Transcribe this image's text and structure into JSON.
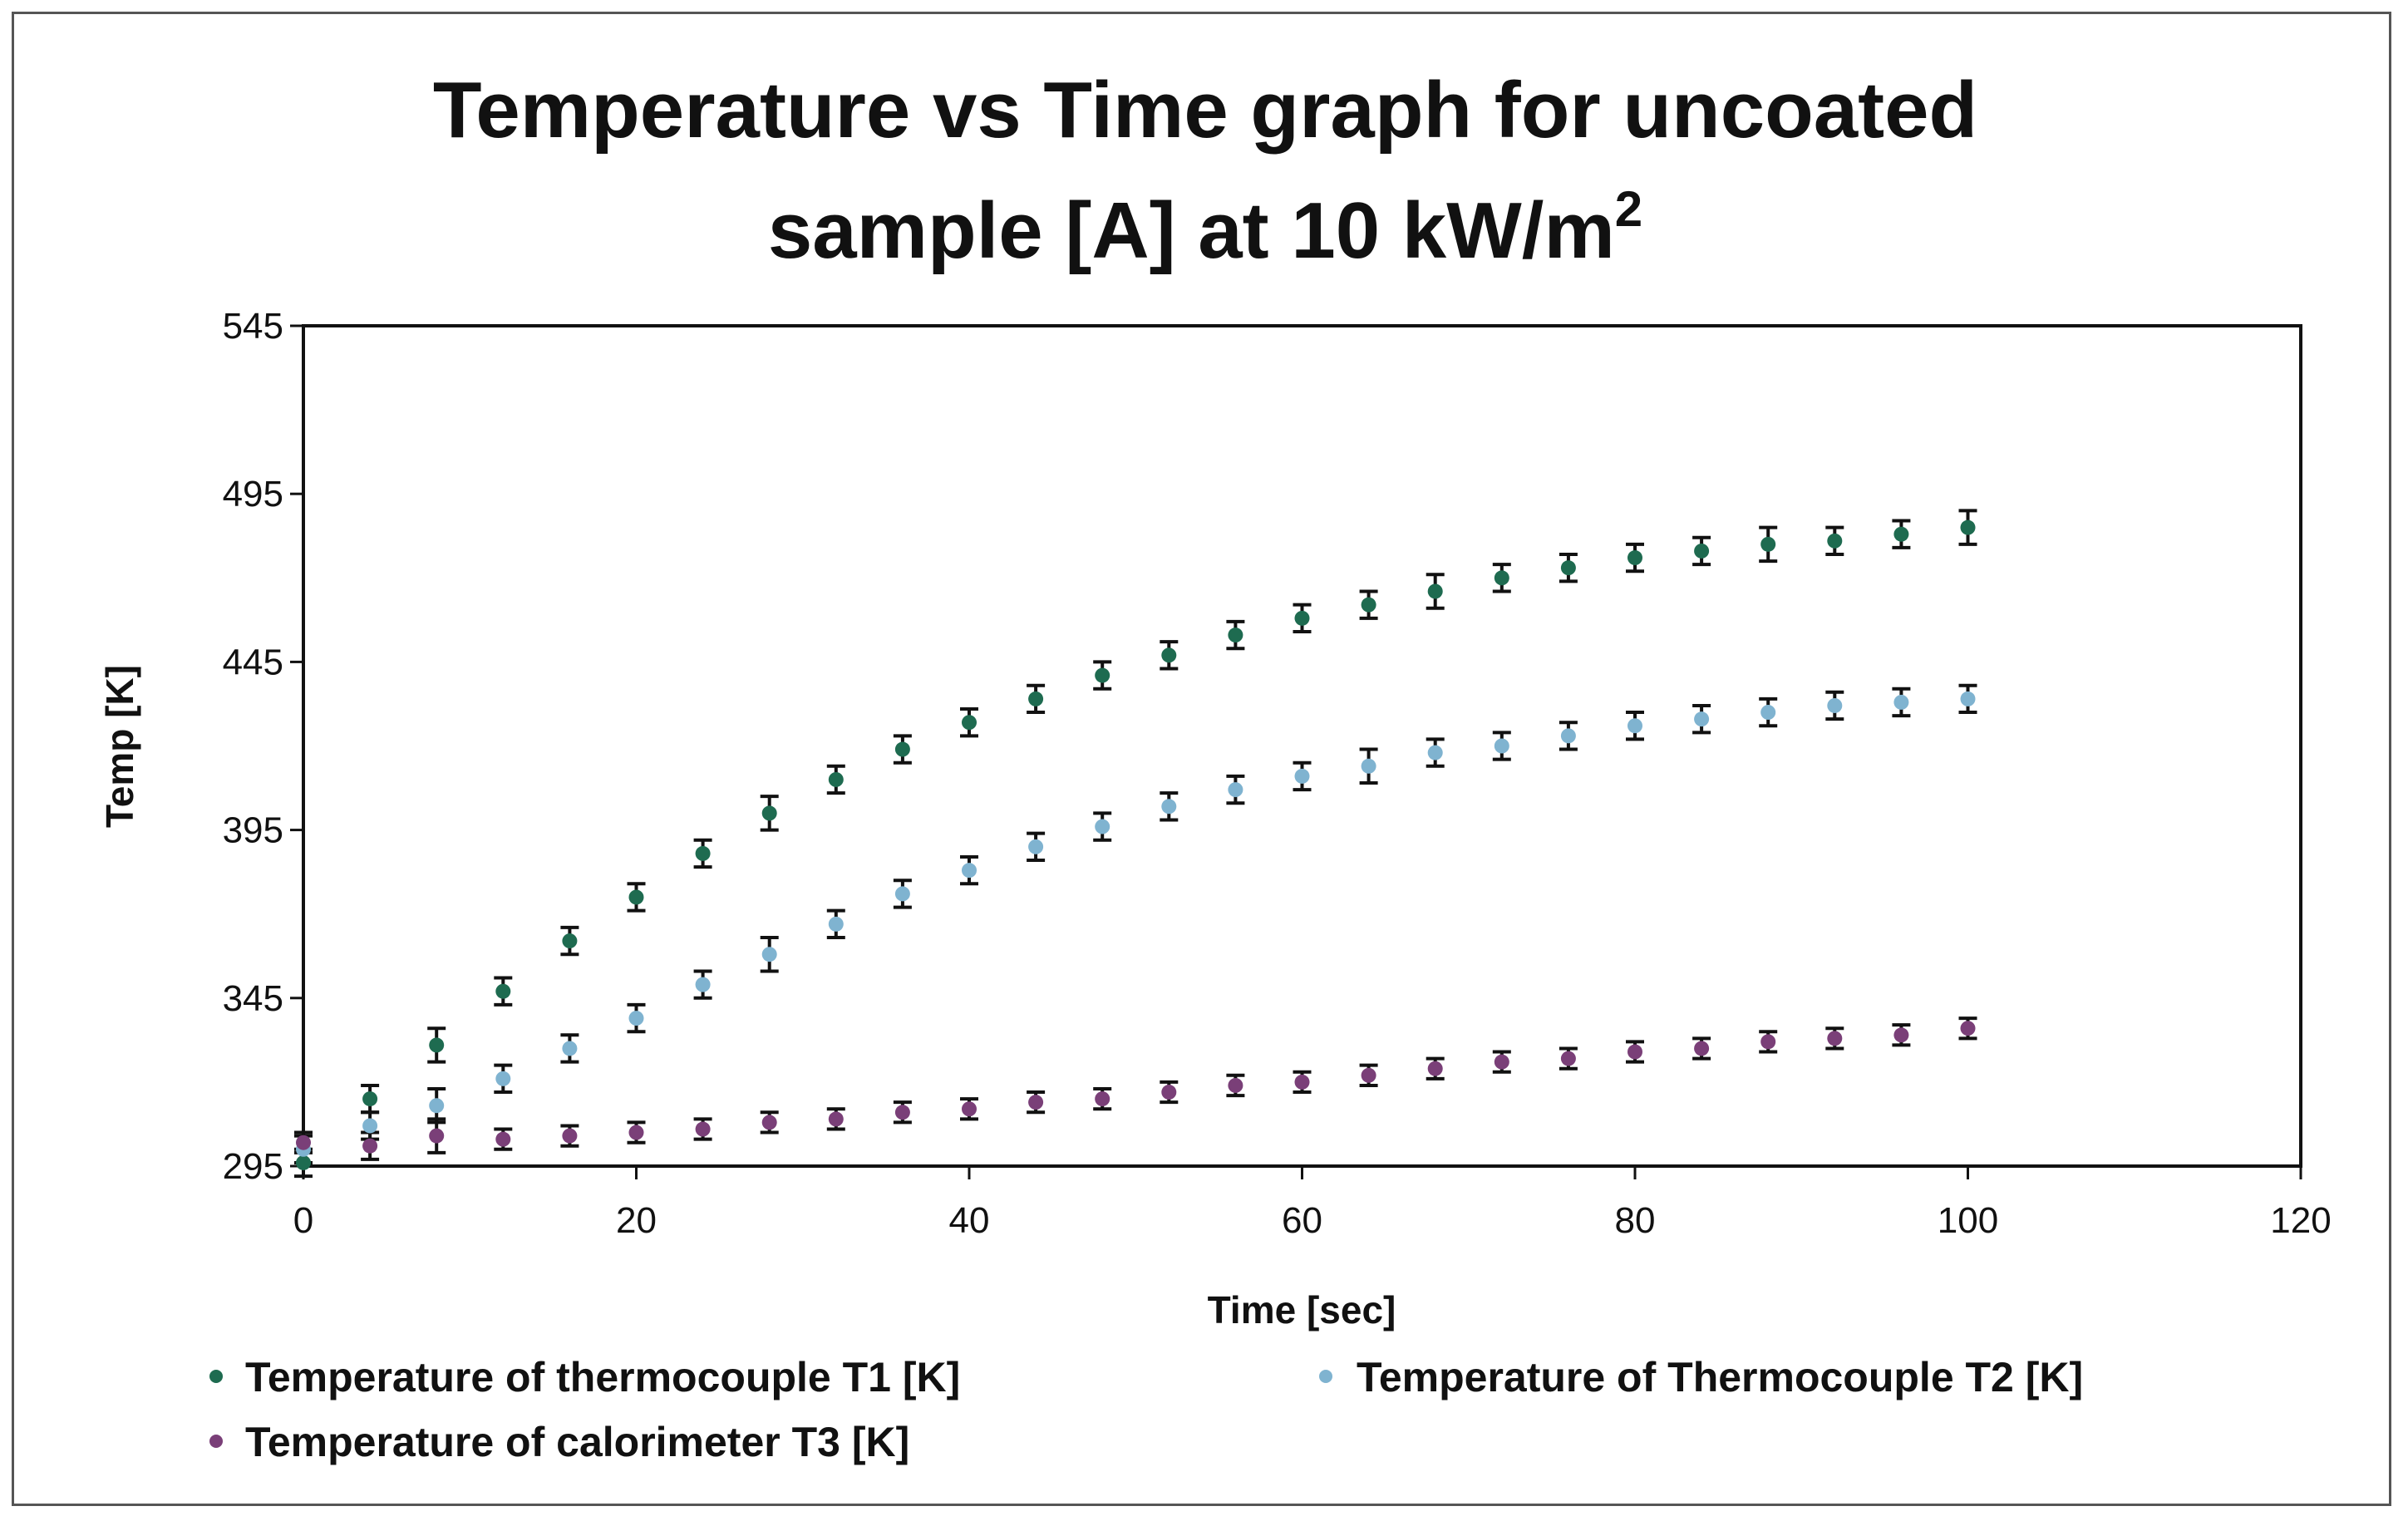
{
  "chart_data": {
    "type": "scatter",
    "title": "Temperature vs Time graph for uncoated sample [A] at 10 kW/m²",
    "title_lines": [
      "Temperature vs Time graph for uncoated",
      "sample [A] at 10 kW/m",
      "2"
    ],
    "xlabel": "Time [sec]",
    "ylabel": "Temp [K]",
    "xlim": [
      0,
      120
    ],
    "ylim": [
      295,
      545
    ],
    "x_ticks": [
      0,
      20,
      40,
      60,
      80,
      100,
      120
    ],
    "y_ticks": [
      295,
      345,
      395,
      445,
      495,
      545
    ],
    "x_tick_labels": [
      "0",
      "20",
      "40",
      "60",
      "80",
      "100",
      "120"
    ],
    "y_tick_labels": [
      "295",
      "345",
      "395",
      "445",
      "495",
      "545"
    ],
    "grid": false,
    "legend_position": "bottom",
    "error_bar_color": "#111111",
    "x": [
      0,
      4,
      8,
      12,
      16,
      20,
      24,
      28,
      32,
      36,
      40,
      44,
      48,
      52,
      56,
      60,
      64,
      68,
      72,
      76,
      80,
      84,
      88,
      92,
      96,
      100
    ],
    "series": [
      {
        "name": "Temperature of thermocouple T1 [K]",
        "color": "#1e6b50",
        "values": [
          296,
          315,
          331,
          347,
          362,
          375,
          388,
          400,
          410,
          419,
          427,
          434,
          441,
          447,
          453,
          458,
          462,
          466,
          470,
          473,
          476,
          478,
          480,
          481,
          483,
          485
        ],
        "errors": [
          4,
          4,
          5,
          4,
          4,
          4,
          4,
          5,
          4,
          4,
          4,
          4,
          4,
          4,
          4,
          4,
          4,
          5,
          4,
          4,
          4,
          4,
          5,
          4,
          4,
          5
        ]
      },
      {
        "name": "Temperature of Thermocouple T2 [K]",
        "color": "#7fb3d0",
        "values": [
          300,
          307,
          313,
          321,
          330,
          339,
          349,
          358,
          367,
          376,
          383,
          390,
          396,
          402,
          407,
          411,
          414,
          418,
          420,
          423,
          426,
          428,
          430,
          432,
          433,
          434
        ],
        "errors": [
          4,
          4,
          5,
          4,
          4,
          4,
          4,
          5,
          4,
          4,
          4,
          4,
          4,
          4,
          4,
          4,
          5,
          4,
          4,
          4,
          4,
          4,
          4,
          4,
          4,
          4
        ]
      },
      {
        "name": "Temperature of calorimeter T3 [K]",
        "color": "#7a3f78",
        "values": [
          302,
          301,
          304,
          303,
          304,
          305,
          306,
          308,
          309,
          311,
          312,
          314,
          315,
          317,
          319,
          320,
          322,
          324,
          326,
          327,
          329,
          330,
          332,
          333,
          334,
          336
        ],
        "errors": [
          3,
          4,
          5,
          3,
          3,
          3,
          3,
          3,
          3,
          3,
          3,
          3,
          3,
          3,
          3,
          3,
          3,
          3,
          3,
          3,
          3,
          3,
          3,
          3,
          3,
          3
        ]
      }
    ]
  }
}
